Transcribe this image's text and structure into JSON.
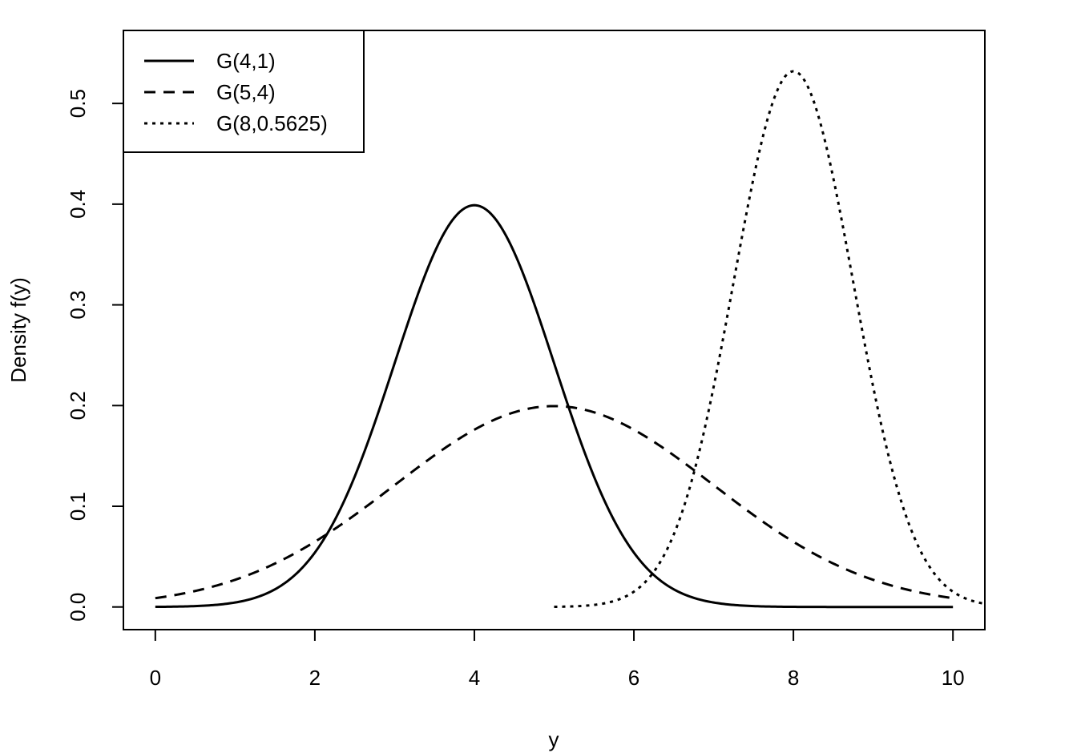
{
  "chart_data": {
    "type": "line",
    "title": "",
    "xlabel": "y",
    "ylabel": "Density f(y)",
    "xlim": [
      -0.4,
      10.4
    ],
    "ylim": [
      -0.0225,
      0.5725
    ],
    "x_ticks": [
      0,
      2,
      4,
      6,
      8,
      10
    ],
    "x_tick_labels": [
      "0",
      "2",
      "4",
      "6",
      "8",
      "10"
    ],
    "y_ticks": [
      0.0,
      0.1,
      0.2,
      0.3,
      0.4,
      0.5
    ],
    "y_tick_labels": [
      "0.0",
      "0.1",
      "0.2",
      "0.3",
      "0.4",
      "0.5"
    ],
    "grid": false,
    "legend_position": "top-left",
    "series": [
      {
        "name": "G(4,1)",
        "style": "solid",
        "mean": 4,
        "variance": 1,
        "x_range": [
          0,
          10
        ]
      },
      {
        "name": "G(5,4)",
        "style": "dashed",
        "mean": 5,
        "variance": 4,
        "x_range": [
          0,
          10
        ]
      },
      {
        "name": "G(8,0.5625)",
        "style": "dotted",
        "mean": 8,
        "variance": 0.5625,
        "x_range": [
          5,
          10.4
        ]
      }
    ],
    "color": "#000000"
  }
}
